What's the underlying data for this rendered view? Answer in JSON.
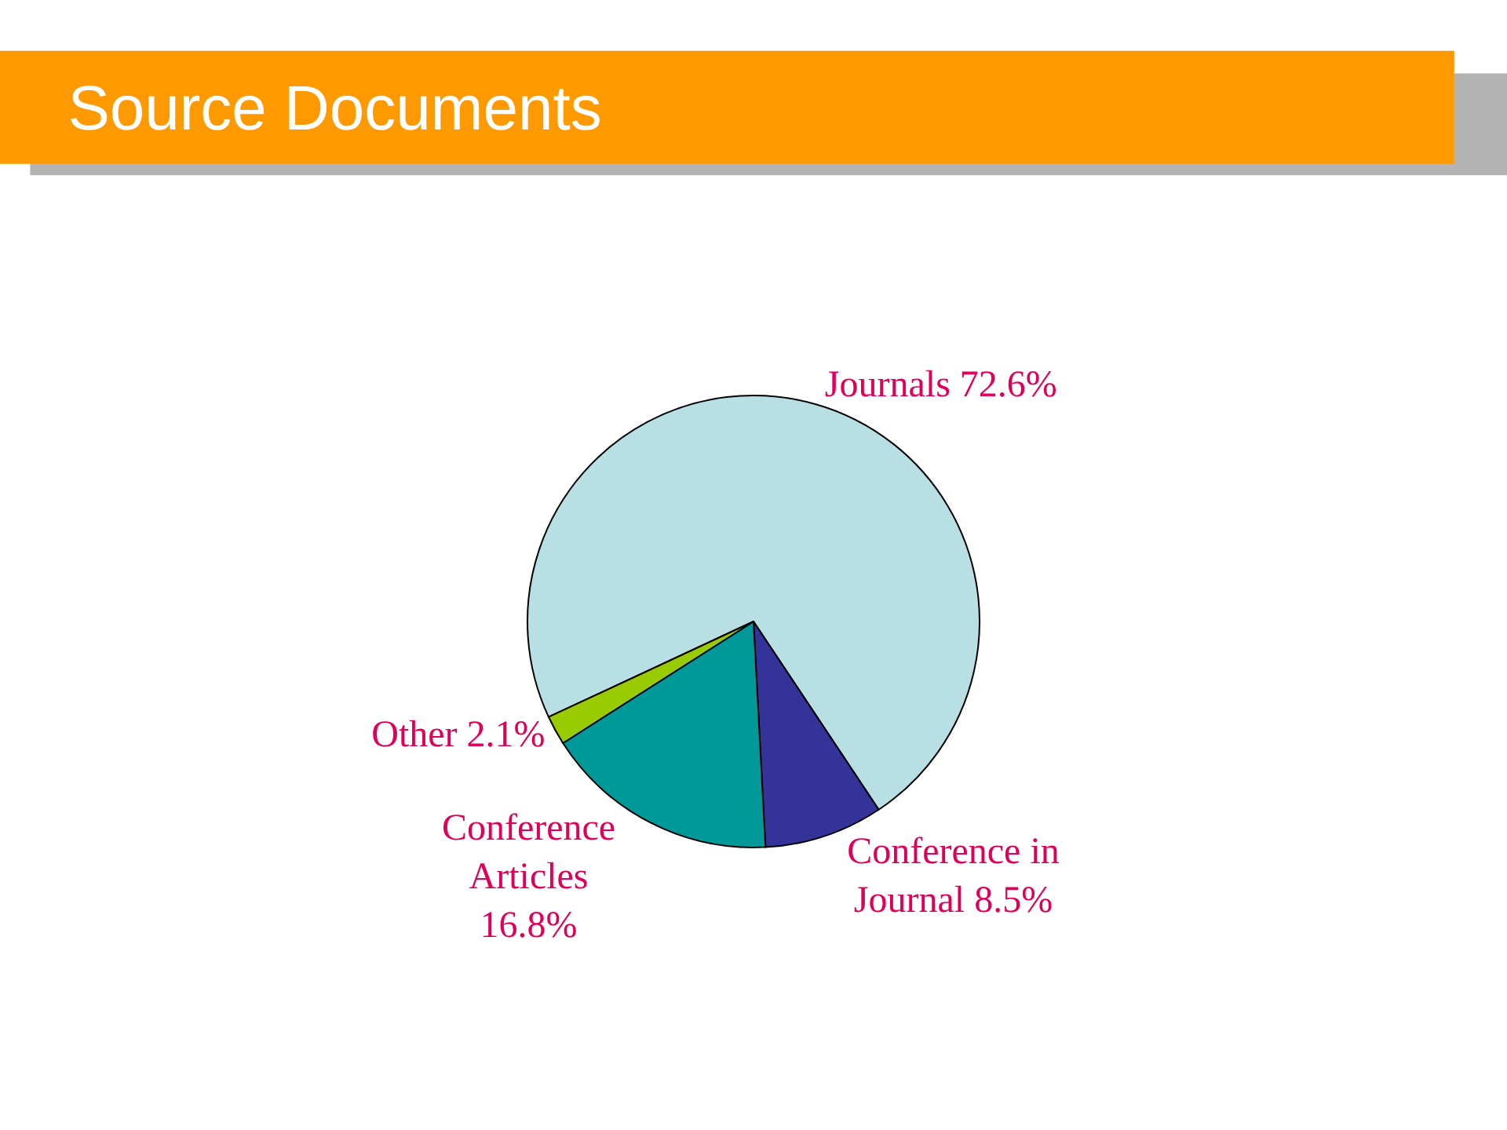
{
  "chart_data": {
    "type": "pie",
    "title": "Source Documents",
    "categories": [
      "Journals 72.6%",
      "Conference in\nJournal 8.5%",
      "Conference\nArticles\n16.8%",
      "Other 2.1%"
    ],
    "values": [
      72.6,
      8.5,
      16.8,
      2.1
    ],
    "colors": [
      "#b8e0e4",
      "#333399",
      "#009999",
      "#99cc00"
    ],
    "legend": false
  }
}
